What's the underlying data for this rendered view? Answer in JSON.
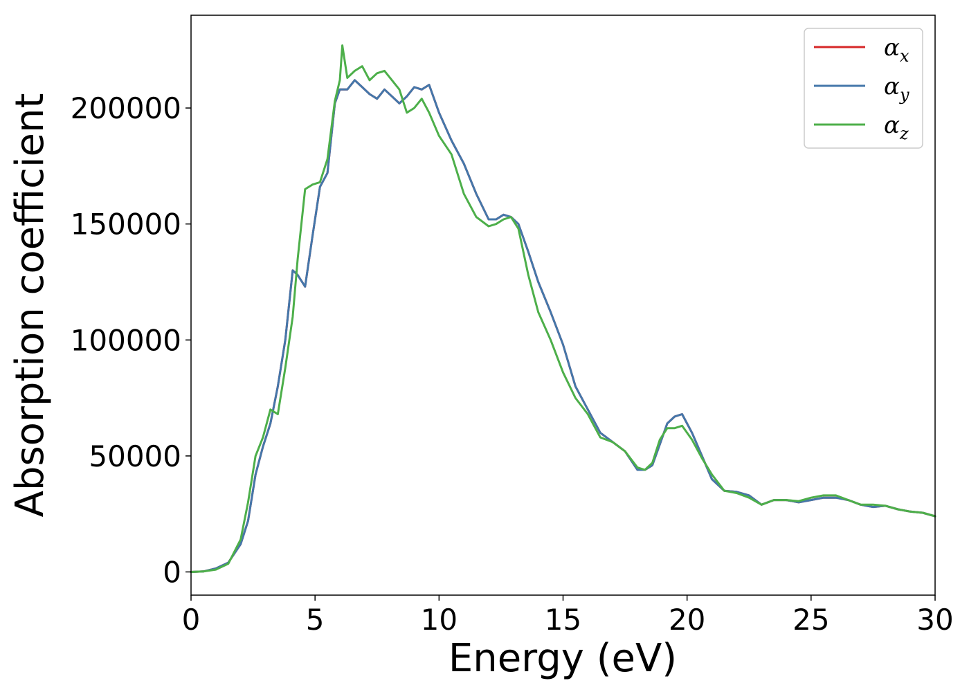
{
  "chart_data": {
    "type": "line",
    "title": "",
    "xlabel": "Energy (eV)",
    "ylabel": "Absorption coefficient",
    "xlim": [
      0,
      30
    ],
    "ylim": [
      -10000,
      240000
    ],
    "xticks": [
      0,
      5,
      10,
      15,
      20,
      25,
      30
    ],
    "yticks": [
      0,
      50000,
      100000,
      150000,
      200000
    ],
    "xtick_labels": [
      "0",
      "5",
      "10",
      "15",
      "20",
      "25",
      "30"
    ],
    "ytick_labels": [
      "0",
      "50000",
      "100000",
      "150000",
      "200000"
    ],
    "grid": false,
    "legend_position": "top-right",
    "series": [
      {
        "name": "α_x",
        "symbol": "α",
        "subscript": "x",
        "color": "#d62728",
        "x": [
          0,
          0.5,
          1.0,
          1.5,
          2.0,
          2.3,
          2.6,
          2.9,
          3.2,
          3.5,
          3.8,
          4.1,
          4.3,
          4.6,
          4.9,
          5.2,
          5.5,
          5.8,
          6.0,
          6.3,
          6.6,
          6.9,
          7.2,
          7.5,
          7.8,
          8.1,
          8.4,
          8.7,
          9.0,
          9.3,
          9.6,
          10.0,
          10.5,
          11.0,
          11.5,
          12.0,
          12.3,
          12.6,
          12.9,
          13.2,
          13.6,
          14.0,
          14.5,
          15.0,
          15.5,
          16.0,
          16.5,
          17.0,
          17.5,
          18.0,
          18.3,
          18.6,
          18.9,
          19.2,
          19.5,
          19.8,
          20.2,
          20.6,
          21.0,
          21.5,
          22.0,
          22.5,
          23.0,
          23.5,
          24.0,
          24.5,
          25.0,
          25.5,
          26.0,
          26.5,
          27.0,
          27.5,
          28.0,
          28.5,
          29.0,
          29.5,
          30.0
        ],
        "y": [
          0,
          200,
          1500,
          4000,
          12000,
          22000,
          42000,
          54000,
          64000,
          80000,
          100000,
          130000,
          128000,
          123000,
          145000,
          166000,
          172000,
          202000,
          208000,
          208000,
          212000,
          209000,
          206000,
          204000,
          208000,
          205000,
          202000,
          205000,
          209000,
          208000,
          210000,
          198000,
          186000,
          176000,
          163000,
          152000,
          152000,
          154000,
          153000,
          150000,
          138000,
          125000,
          112000,
          98000,
          80000,
          70000,
          60000,
          56000,
          52000,
          44000,
          44000,
          46000,
          55000,
          64000,
          67000,
          68000,
          60000,
          50000,
          40000,
          35000,
          34500,
          33000,
          29000,
          31000,
          31000,
          30000,
          31000,
          32000,
          32000,
          31000,
          29000,
          28000,
          28500,
          27000,
          26000,
          25500,
          24000
        ]
      },
      {
        "name": "α_y",
        "symbol": "α",
        "subscript": "y",
        "color": "#4477aa",
        "x": [
          0,
          0.5,
          1.0,
          1.5,
          2.0,
          2.3,
          2.6,
          2.9,
          3.2,
          3.5,
          3.8,
          4.1,
          4.3,
          4.6,
          4.9,
          5.2,
          5.5,
          5.8,
          6.0,
          6.3,
          6.6,
          6.9,
          7.2,
          7.5,
          7.8,
          8.1,
          8.4,
          8.7,
          9.0,
          9.3,
          9.6,
          10.0,
          10.5,
          11.0,
          11.5,
          12.0,
          12.3,
          12.6,
          12.9,
          13.2,
          13.6,
          14.0,
          14.5,
          15.0,
          15.5,
          16.0,
          16.5,
          17.0,
          17.5,
          18.0,
          18.3,
          18.6,
          18.9,
          19.2,
          19.5,
          19.8,
          20.2,
          20.6,
          21.0,
          21.5,
          22.0,
          22.5,
          23.0,
          23.5,
          24.0,
          24.5,
          25.0,
          25.5,
          26.0,
          26.5,
          27.0,
          27.5,
          28.0,
          28.5,
          29.0,
          29.5,
          30.0
        ],
        "y": [
          0,
          200,
          1500,
          4000,
          12000,
          22000,
          42000,
          54000,
          64000,
          80000,
          100000,
          130000,
          128000,
          123000,
          145000,
          166000,
          172000,
          202000,
          208000,
          208000,
          212000,
          209000,
          206000,
          204000,
          208000,
          205000,
          202000,
          205000,
          209000,
          208000,
          210000,
          198000,
          186000,
          176000,
          163000,
          152000,
          152000,
          154000,
          153000,
          150000,
          138000,
          125000,
          112000,
          98000,
          80000,
          70000,
          60000,
          56000,
          52000,
          44000,
          44000,
          46000,
          55000,
          64000,
          67000,
          68000,
          60000,
          50000,
          40000,
          35000,
          34500,
          33000,
          29000,
          31000,
          31000,
          30000,
          31000,
          32000,
          32000,
          31000,
          29000,
          28000,
          28500,
          27000,
          26000,
          25500,
          24000
        ]
      },
      {
        "name": "α_z",
        "symbol": "α",
        "subscript": "z",
        "color": "#4daf4a",
        "x": [
          0,
          0.5,
          1.0,
          1.5,
          2.0,
          2.3,
          2.6,
          2.9,
          3.2,
          3.5,
          3.8,
          4.1,
          4.3,
          4.6,
          4.9,
          5.2,
          5.5,
          5.8,
          6.0,
          6.1,
          6.3,
          6.6,
          6.9,
          7.2,
          7.5,
          7.8,
          8.1,
          8.4,
          8.7,
          9.0,
          9.3,
          9.6,
          10.0,
          10.5,
          11.0,
          11.5,
          12.0,
          12.3,
          12.6,
          12.9,
          13.2,
          13.6,
          14.0,
          14.5,
          15.0,
          15.5,
          16.0,
          16.5,
          17.0,
          17.5,
          18.0,
          18.3,
          18.6,
          18.9,
          19.2,
          19.5,
          19.8,
          20.2,
          20.6,
          21.0,
          21.5,
          22.0,
          22.5,
          23.0,
          23.5,
          24.0,
          24.5,
          25.0,
          25.5,
          26.0,
          26.5,
          27.0,
          27.5,
          28.0,
          28.5,
          29.0,
          29.5,
          30.0
        ],
        "y": [
          0,
          200,
          1000,
          3500,
          14000,
          30000,
          50000,
          58000,
          70000,
          68000,
          88000,
          110000,
          135000,
          165000,
          167000,
          168000,
          178000,
          203000,
          212000,
          227000,
          213000,
          216000,
          218000,
          212000,
          215000,
          216000,
          212000,
          208000,
          198000,
          200000,
          204000,
          198000,
          188000,
          180000,
          163000,
          153000,
          149000,
          150000,
          152000,
          153000,
          148000,
          128000,
          112000,
          100000,
          86000,
          75000,
          68000,
          58000,
          56000,
          52000,
          45000,
          44000,
          47000,
          57000,
          62000,
          62000,
          63000,
          57000,
          49000,
          42000,
          35000,
          34000,
          32000,
          29000,
          31000,
          31000,
          30500,
          32000,
          33000,
          33000,
          31000,
          29000,
          29000,
          28500,
          27000,
          26000,
          25500,
          24000
        ]
      }
    ]
  }
}
